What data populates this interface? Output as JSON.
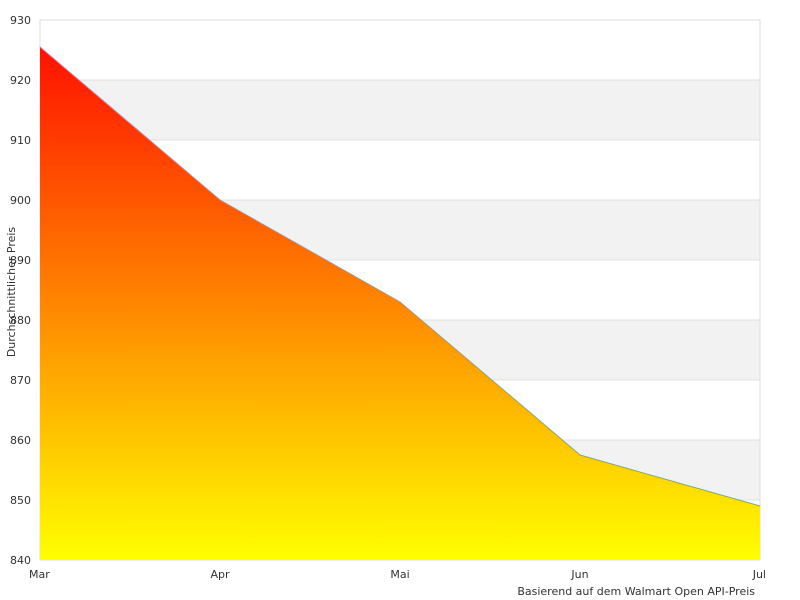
{
  "chart_data": {
    "type": "area",
    "title": "",
    "xlabel": "",
    "ylabel": "Durchschnittlicher Preis",
    "caption": "Basierend auf dem Walmart Open API-Preis",
    "categories": [
      "Mar",
      "Apr",
      "Mai",
      "Jun",
      "Jul"
    ],
    "series": [
      {
        "values": [
          925.5,
          900.0,
          883.0,
          857.5,
          849.0
        ]
      }
    ],
    "ylim": [
      840,
      930
    ],
    "yticks": [
      840,
      850,
      860,
      870,
      880,
      890,
      900,
      910,
      920,
      930
    ],
    "grid": true,
    "legend": "none",
    "colors": {
      "gradient_top": "#ff1100",
      "gradient_mid": "#ff7a00",
      "gradient_bottom": "#ffff00",
      "line": "#6aa3d8",
      "band": "#f2f2f2",
      "gridline": "#e0e0e0",
      "border": "#dddddd"
    }
  }
}
